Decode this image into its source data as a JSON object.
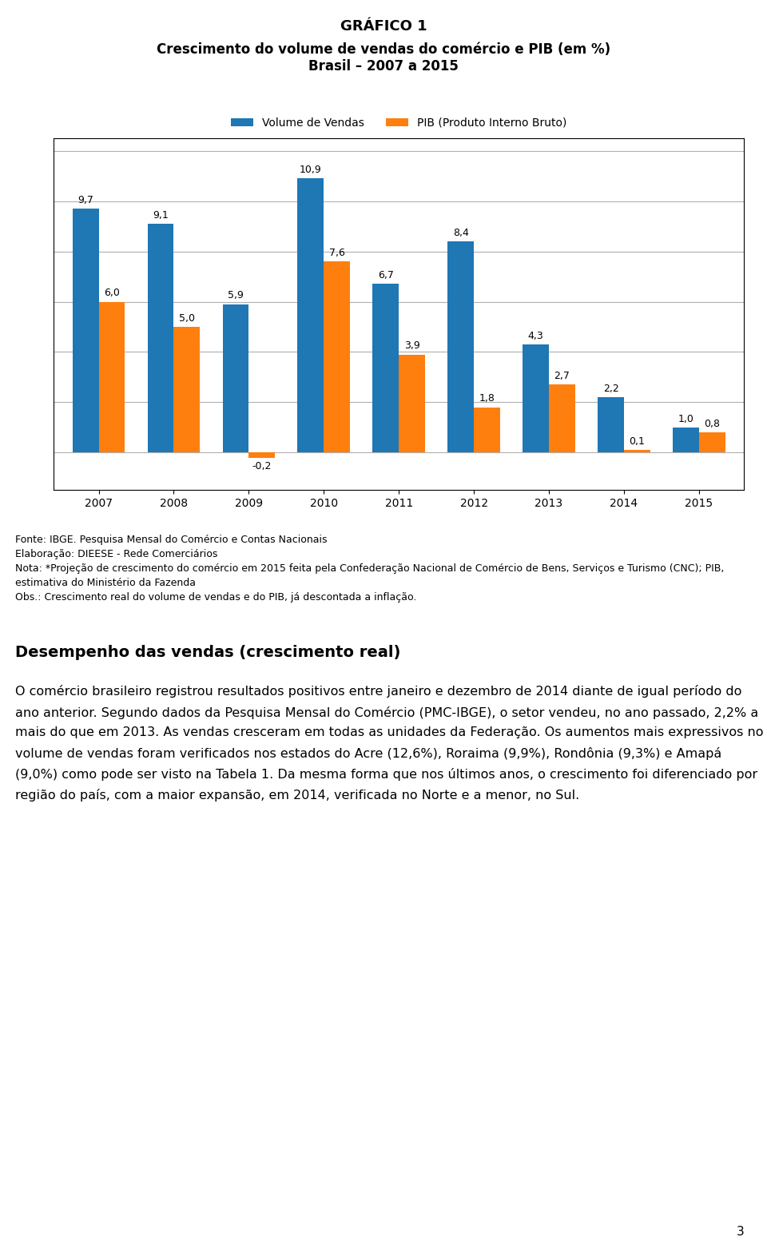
{
  "chart_data": {
    "type": "bar",
    "title": "GRÁFICO 1",
    "subtitle": "Crescimento do volume de vendas do comércio e PIB (em %)\nBrasil – 2007 a 2015",
    "categories": [
      "2007",
      "2008",
      "2009",
      "2010",
      "2011",
      "2012",
      "2013",
      "2014",
      "2015"
    ],
    "series": [
      {
        "name": "Volume de Vendas",
        "values": [
          9.7,
          9.1,
          5.9,
          10.9,
          6.7,
          8.4,
          4.3,
          2.2,
          1.0
        ],
        "value_labels": [
          "9,7",
          "9,1",
          "5,9",
          "10,9",
          "6,7",
          "8,4",
          "4,3",
          "2,2",
          "1,0"
        ]
      },
      {
        "name": "PIB (Produto Interno Bruto)",
        "values": [
          6.0,
          5.0,
          -0.2,
          7.6,
          3.9,
          1.8,
          2.7,
          0.1,
          0.8
        ],
        "value_labels": [
          "6,0",
          "5,0",
          "-0,2",
          "7,6",
          "3,9",
          "1,8",
          "2,7",
          "0,1",
          "0,8"
        ]
      }
    ],
    "ylim": [
      -1.5,
      12.5
    ],
    "yticks": [
      0,
      2,
      4,
      6,
      8,
      10,
      12
    ],
    "grid": true,
    "legend": "lower center",
    "data_labels": true,
    "tick_labels": "x",
    "annotations": [
      "Fonte: IBGE. Pesquisa Mensal do Comércio e Contas Nacionais\nElaboração: DIEESE - Rede Comerciários\nNota: *Projeção de crescimento do comércio em 2015 feita pela Confederação Nacional de Comércio de Bens, Serviços e Turismo (CNC); PIB, estimativa do Ministério da Fazenda\nObs.: Crescimento real do volume de vendas e do PIB, já descontada a inflação.",
      "Desempenho das vendas (crescimento real)",
      "O comércio brasileiro registrou resultados positivos entre janeiro e dezembro de 2014 diante de igual período do ano anterior. Segundo dados da Pesquisa Mensal do Comércio (PMC-IBGE), o setor vendeu, no ano passado, 2,2% a mais do que em 2013. As vendas cresceram em todas as unidades da Federação. Os aumentos mais expressivos no volume de vendas foram verificados nos estados do Acre (12,6%), Roraima (9,9%), Rondônia (9,3%) e Amapá (9,0%) como pode ser visto na Tabela 1. Da mesma forma que nos últimos anos, o crescimento foi diferenciado por região do país, com a maior expansão, em 2014, verificada no Norte e a menor, no Sul.",
      "3"
    ]
  }
}
